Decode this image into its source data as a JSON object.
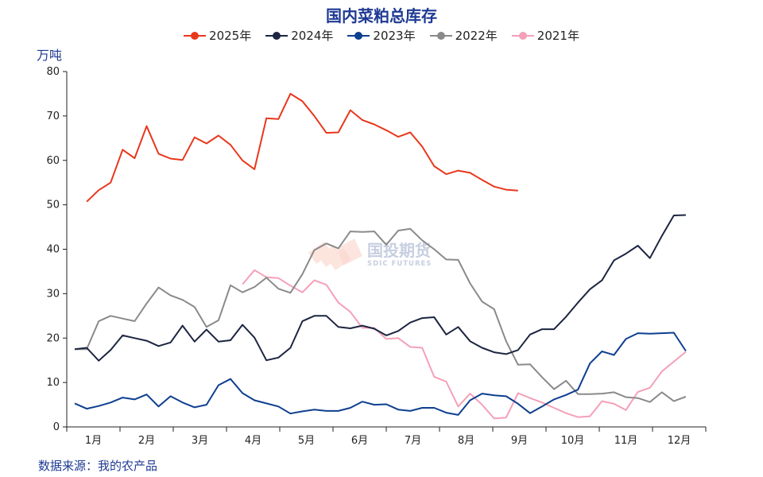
{
  "chart_data": {
    "type": "line",
    "title": "国内菜粕总库存",
    "ylabel": "万吨",
    "ylim": [
      0,
      80
    ],
    "yticks": [
      0,
      10,
      20,
      30,
      40,
      50,
      60,
      70,
      80
    ],
    "xmax": 52,
    "months": [
      "1月",
      "2月",
      "3月",
      "4月",
      "5月",
      "6月",
      "7月",
      "8月",
      "9月",
      "10月",
      "11月",
      "12月"
    ],
    "grid": false,
    "legend_position": "top",
    "source": "数据来源：我的农产品",
    "watermark": {
      "cn": "国投期货",
      "en": "SDIC FUTURES"
    },
    "series": [
      {
        "name": "2025年",
        "color": "#e8371d",
        "marker": true,
        "x": [
          1,
          2,
          3,
          4,
          5,
          6,
          7,
          8,
          9,
          10,
          11,
          12,
          13,
          14,
          15,
          16,
          17,
          18,
          19,
          20,
          21,
          22,
          23,
          24,
          25,
          26,
          27,
          28,
          29,
          30,
          31,
          32,
          33,
          34,
          35,
          36,
          37,
          38
        ],
        "y": [
          50.7,
          53.3,
          55.0,
          62.4,
          60.5,
          67.7,
          61.5,
          60.4,
          60.1,
          65.2,
          63.8,
          65.6,
          63.5,
          60.0,
          58.0,
          69.5,
          69.3,
          75.0,
          73.3,
          70.0,
          66.2,
          66.3,
          71.3,
          69.1,
          68.1,
          66.8,
          65.3,
          66.3,
          63.1,
          58.7,
          56.9,
          57.7,
          57.2,
          55.6,
          54.1,
          53.4,
          53.2,
          null
        ]
      },
      {
        "name": "2024年",
        "color": "#1c2541",
        "marker": true,
        "x": [
          0,
          1,
          2,
          3,
          4,
          5,
          6,
          7,
          8,
          9,
          10,
          11,
          12,
          13,
          14,
          15,
          16,
          17,
          18,
          19,
          20,
          21,
          22,
          23,
          24,
          25,
          26,
          27,
          28,
          29,
          30,
          31,
          32,
          33,
          34,
          35,
          36,
          37,
          38,
          39,
          40,
          41,
          42,
          43,
          44,
          45,
          46,
          47,
          48,
          49,
          50,
          51
        ],
        "y": [
          17.5,
          17.8,
          14.9,
          17.3,
          20.6,
          20.0,
          19.4,
          18.2,
          19.0,
          22.8,
          19.2,
          21.9,
          19.2,
          19.5,
          23.0,
          20.1,
          15.0,
          15.6,
          17.8,
          23.8,
          25.0,
          25.0,
          22.5,
          22.2,
          22.8,
          22.1,
          20.6,
          21.6,
          23.5,
          24.5,
          24.7,
          20.8,
          22.5,
          19.3,
          17.8,
          16.8,
          16.4,
          17.3,
          20.8,
          22.0,
          22.0,
          24.8,
          28.0,
          31.0,
          33.0,
          37.5,
          39.0,
          40.8,
          38.0,
          43.0,
          47.6,
          47.7
        ]
      },
      {
        "name": "2023年",
        "color": "#0e3f8f",
        "marker": true,
        "x": [
          0,
          1,
          2,
          3,
          4,
          5,
          6,
          7,
          8,
          9,
          10,
          11,
          12,
          13,
          14,
          15,
          16,
          17,
          18,
          19,
          20,
          21,
          22,
          23,
          24,
          25,
          26,
          27,
          28,
          29,
          30,
          31,
          32,
          33,
          34,
          35,
          36,
          37,
          38,
          39,
          40,
          41,
          42,
          43,
          44,
          45,
          46,
          47,
          48,
          49,
          50,
          51
        ],
        "y": [
          5.3,
          4.1,
          4.7,
          5.5,
          6.6,
          6.2,
          7.3,
          4.6,
          6.9,
          5.5,
          4.4,
          5.0,
          9.4,
          10.8,
          7.6,
          6.0,
          5.3,
          4.6,
          3.0,
          3.5,
          3.9,
          3.6,
          3.6,
          4.3,
          5.7,
          5.0,
          5.1,
          3.9,
          3.6,
          4.3,
          4.3,
          3.2,
          2.7,
          6.0,
          7.5,
          7.1,
          6.9,
          5.2,
          3.1,
          4.6,
          6.2,
          7.2,
          8.4,
          14.3,
          17.0,
          16.2,
          19.8,
          21.1,
          21.0,
          21.1,
          21.2,
          17.1
        ]
      },
      {
        "name": "2022年",
        "color": "#8a8a8a",
        "marker": true,
        "x": [
          0,
          1,
          2,
          3,
          4,
          5,
          6,
          7,
          8,
          9,
          10,
          11,
          12,
          13,
          14,
          15,
          16,
          17,
          18,
          19,
          20,
          21,
          22,
          23,
          24,
          25,
          26,
          27,
          28,
          29,
          30,
          31,
          32,
          33,
          34,
          35,
          36,
          37,
          38,
          39,
          40,
          41,
          42,
          43,
          44,
          45,
          46,
          47,
          48,
          49,
          50,
          51
        ],
        "y": [
          17.5,
          17.5,
          23.8,
          25.0,
          24.4,
          23.8,
          27.8,
          31.4,
          29.6,
          28.6,
          27.0,
          22.5,
          24.0,
          31.9,
          30.3,
          31.5,
          33.6,
          31.1,
          30.2,
          34.4,
          39.8,
          41.3,
          40.2,
          44.0,
          43.9,
          44.0,
          41.0,
          44.2,
          44.6,
          42.0,
          40.0,
          37.7,
          37.6,
          32.3,
          28.2,
          26.5,
          19.3,
          14.0,
          14.1,
          11.2,
          8.5,
          10.4,
          7.4,
          7.4,
          7.5,
          7.8,
          6.7,
          6.5,
          5.6,
          7.8,
          5.8,
          6.8
        ]
      },
      {
        "name": "2021年",
        "color": "#f4a0b8",
        "marker": true,
        "x": [
          14,
          15,
          16,
          17,
          18,
          19,
          20,
          21,
          22,
          23,
          24,
          25,
          26,
          27,
          28,
          29,
          30,
          31,
          32,
          33,
          34,
          35,
          36,
          37,
          38,
          39,
          40,
          41,
          42,
          43,
          44,
          45,
          46,
          47,
          48,
          49,
          50,
          51
        ],
        "y": [
          32.1,
          35.3,
          33.7,
          33.5,
          31.8,
          30.3,
          33.0,
          32.0,
          28.0,
          25.9,
          22.3,
          22.3,
          19.8,
          20.0,
          18.0,
          17.8,
          11.3,
          10.2,
          4.6,
          7.5,
          5.0,
          1.9,
          2.1,
          7.6,
          6.5,
          5.5,
          4.3,
          3.1,
          2.2,
          2.4,
          5.8,
          5.2,
          3.8,
          7.9,
          8.8,
          12.5,
          14.7,
          16.9
        ]
      }
    ]
  }
}
